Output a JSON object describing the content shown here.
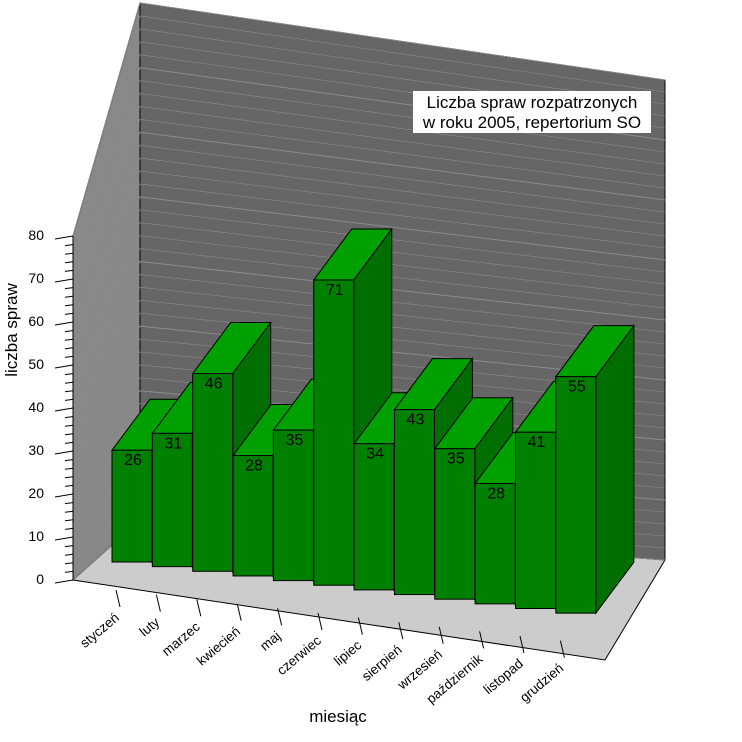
{
  "chart_data": {
    "type": "bar",
    "title_lines": [
      "Liczba spraw rozpatrzonych",
      "w roku 2005, repertorium SO"
    ],
    "xlabel": "miesiąc",
    "ylabel": "liczba spraw",
    "categories": [
      "styczeń",
      "luty",
      "marzec",
      "kwiecień",
      "maj",
      "czerwiec",
      "lipiec",
      "sierpień",
      "wrzesień",
      "październik",
      "listopad",
      "grudzień"
    ],
    "values": [
      26,
      31,
      46,
      28,
      35,
      71,
      34,
      43,
      35,
      28,
      41,
      55
    ],
    "ylim": [
      0,
      80
    ],
    "yticks": [
      0,
      10,
      20,
      30,
      40,
      50,
      60,
      70,
      80
    ],
    "grid": true,
    "three_d": true,
    "colors": {
      "bar_front": "#008000",
      "bar_side": "#006e00",
      "bar_top": "#00a000",
      "back_wall": "#666666",
      "side_wall": "#888888",
      "floor": "#cccccc",
      "grid_line": "#8c8c8c"
    }
  }
}
